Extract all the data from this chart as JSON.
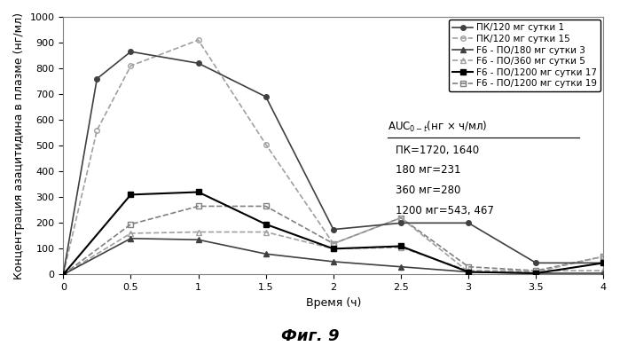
{
  "title": "Фиг. 9",
  "xlabel": "Время (ч)",
  "ylabel": "Концентрация азацитидина в плазме (нг/мл)",
  "xlim": [
    0,
    4
  ],
  "ylim": [
    0,
    1000
  ],
  "xticks": [
    0,
    0.5,
    1,
    1.5,
    2,
    2.5,
    3,
    3.5,
    4
  ],
  "yticks": [
    0,
    100,
    200,
    300,
    400,
    500,
    600,
    700,
    800,
    900,
    1000
  ],
  "series": [
    {
      "label": "ПК/120 мг сутки 1",
      "x": [
        0,
        0.25,
        0.5,
        1,
        1.5,
        2,
        2.5,
        3,
        3.5,
        4
      ],
      "y": [
        0,
        760,
        865,
        820,
        690,
        175,
        200,
        200,
        45,
        45
      ],
      "color": "#404040",
      "linestyle": "-",
      "marker": "o",
      "markersize": 4,
      "fillstyle": "full",
      "linewidth": 1.2,
      "zorder": 5
    },
    {
      "label": "ПК/120 мг сутки 15",
      "x": [
        0,
        0.25,
        0.5,
        1,
        1.5,
        2,
        2.5,
        3,
        3.5,
        4
      ],
      "y": [
        0,
        560,
        810,
        910,
        505,
        120,
        220,
        10,
        10,
        70
      ],
      "color": "#a0a0a0",
      "linestyle": "--",
      "marker": "o",
      "markersize": 4,
      "fillstyle": "none",
      "linewidth": 1.2,
      "zorder": 4
    },
    {
      "label": "F6 - ПО/180 мг сутки 3",
      "x": [
        0,
        0.5,
        1,
        1.5,
        2,
        2.5,
        3,
        3.5,
        4
      ],
      "y": [
        0,
        140,
        135,
        80,
        50,
        30,
        10,
        5,
        5
      ],
      "color": "#404040",
      "linestyle": "-",
      "marker": "^",
      "markersize": 4,
      "fillstyle": "full",
      "linewidth": 1.2,
      "zorder": 3
    },
    {
      "label": "F6 - ПО/360 мг сутки 5",
      "x": [
        0,
        0.5,
        1,
        1.5,
        2,
        2.5,
        3,
        3.5,
        4
      ],
      "y": [
        0,
        160,
        165,
        165,
        100,
        105,
        15,
        15,
        15
      ],
      "color": "#a0a0a0",
      "linestyle": "--",
      "marker": "^",
      "markersize": 4,
      "fillstyle": "none",
      "linewidth": 1.2,
      "zorder": 2
    },
    {
      "label": "F6 - ПО/1200 мг сутки 17",
      "x": [
        0,
        0.5,
        1,
        1.5,
        2,
        2.5,
        3,
        3.5,
        4
      ],
      "y": [
        0,
        310,
        320,
        195,
        100,
        110,
        10,
        5,
        45
      ],
      "color": "#000000",
      "linestyle": "-",
      "marker": "s",
      "markersize": 4,
      "fillstyle": "full",
      "linewidth": 1.5,
      "zorder": 6
    },
    {
      "label": "F6 - ПО/1200 мг сутки 19",
      "x": [
        0,
        0.5,
        1,
        1.5,
        2,
        2.5,
        3,
        3.5,
        4
      ],
      "y": [
        0,
        195,
        265,
        265,
        120,
        220,
        30,
        15,
        70
      ],
      "color": "#808080",
      "linestyle": "--",
      "marker": "s",
      "markersize": 4,
      "fillstyle": "none",
      "linewidth": 1.2,
      "zorder": 1
    }
  ],
  "annotation_title": "AUC$_{0-t}$(нг × ч/мл)",
  "annotation_lines": [
    "ПК=1720, 1640",
    "180 мг=231",
    "360 мг=280",
    "1200 мг=543, 467"
  ],
  "background_color": "#ffffff",
  "legend_fontsize": 7.5,
  "axis_fontsize": 9,
  "tick_fontsize": 8,
  "title_fontsize": 13
}
